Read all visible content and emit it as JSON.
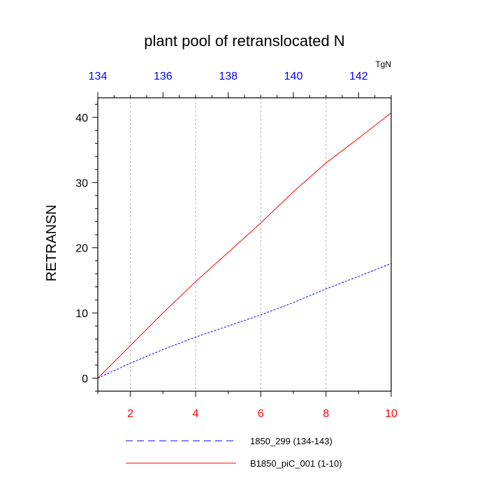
{
  "chart_data": {
    "type": "line",
    "title": "plant pool of retranslocated N",
    "ylabel": "RETRANSN",
    "xlabel": "",
    "top_axis_units": "TgN",
    "xlim": [
      1,
      10
    ],
    "ylim": [
      -2,
      43
    ],
    "top_axis_range": [
      134,
      143
    ],
    "x_ticks": [
      2,
      4,
      6,
      8,
      10
    ],
    "top_ticks": [
      134,
      136,
      138,
      140,
      142
    ],
    "y_ticks": [
      0,
      10,
      20,
      30,
      40
    ],
    "grid": "vertical dashed at major x ticks",
    "legend_position": "bottom",
    "series": [
      {
        "name": "1850_299 (134-143)",
        "color": "#0000ff",
        "dash": "dashed",
        "x": [
          1,
          2,
          3,
          4,
          5,
          6,
          7,
          8,
          9,
          10
        ],
        "values": [
          0,
          2.3,
          4.4,
          6.3,
          8.0,
          9.7,
          11.6,
          13.7,
          15.6,
          17.6
        ]
      },
      {
        "name": "B1850_piC_001 (1-10)",
        "color": "#ff0000",
        "dash": "solid",
        "x": [
          1,
          2,
          3,
          4,
          5,
          6,
          7,
          8,
          9,
          10
        ],
        "values": [
          0,
          5.0,
          10.0,
          14.8,
          19.3,
          23.8,
          28.6,
          33.0,
          36.8,
          40.7
        ]
      }
    ]
  }
}
